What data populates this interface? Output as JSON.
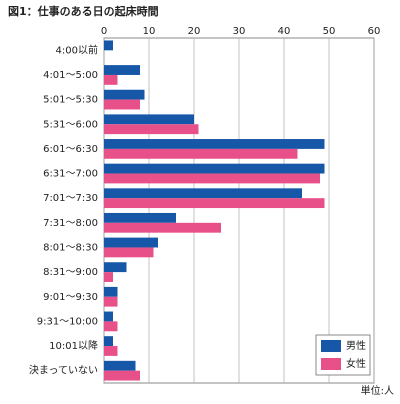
{
  "chart_data": {
    "type": "barh",
    "title": "図1：仕事のある日の起床時間",
    "unit": "単位:人",
    "categories": [
      "4:00以前",
      "4:01～5:00",
      "5:01～5:30",
      "5:31～6:00",
      "6:01～6:30",
      "6:31～7:00",
      "7:01～7:30",
      "7:31～8:00",
      "8:01～8:30",
      "8:31～9:00",
      "9:01～9:30",
      "9:31～10:00",
      "10:01以降",
      "決まっていない"
    ],
    "series": [
      {
        "name": "男性",
        "color": "#1657a8",
        "values": [
          2,
          8,
          9,
          20,
          49,
          49,
          44,
          16,
          12,
          5,
          3,
          2,
          2,
          7
        ]
      },
      {
        "name": "女性",
        "color": "#e8508a",
        "values": [
          0,
          3,
          8,
          21,
          43,
          48,
          49,
          26,
          11,
          2,
          3,
          3,
          3,
          8
        ]
      }
    ],
    "xlim": [
      0,
      60
    ],
    "xticks": [
      0,
      10,
      20,
      30,
      40,
      50,
      60
    ],
    "grid": true,
    "legend": "bottom-right"
  }
}
